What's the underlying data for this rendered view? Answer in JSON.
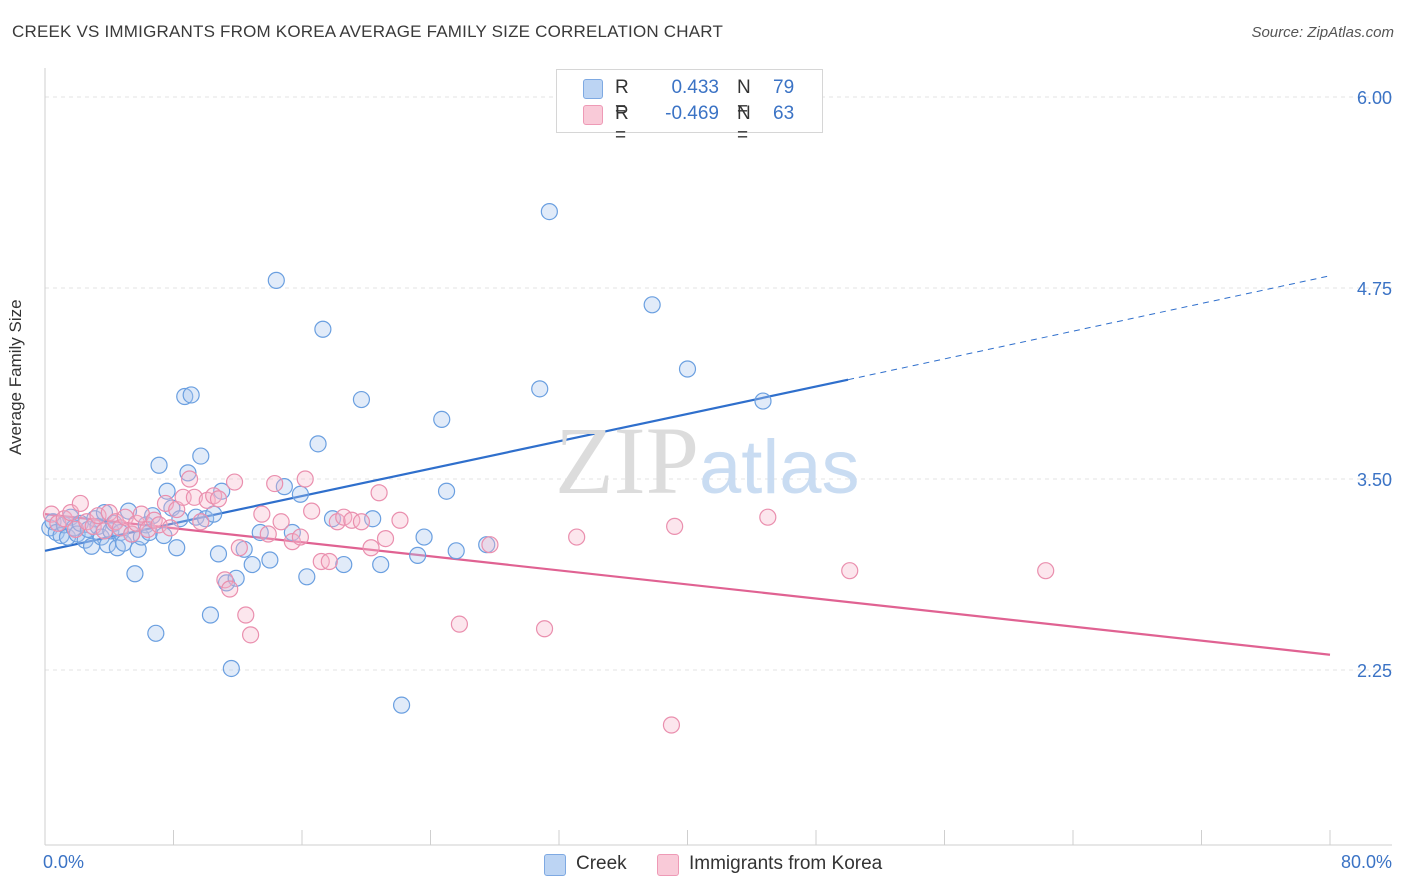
{
  "title": "CREEK VS IMMIGRANTS FROM KOREA AVERAGE FAMILY SIZE CORRELATION CHART",
  "source": "Source: ZipAtlas.com",
  "watermark": {
    "zip": "ZIP",
    "atlas": "atlas"
  },
  "legend": {
    "rows": [
      {
        "r_label": "R =",
        "r_value": "0.433",
        "n_label": "N =",
        "n_value": "79",
        "color": "#a9c6ef"
      },
      {
        "r_label": "R =",
        "r_value": "-0.469",
        "n_label": "N =",
        "n_value": "63",
        "color": "#f5b8cb"
      }
    ]
  },
  "bottom_legend": [
    {
      "label": "Creek",
      "color": "#a9c6ef"
    },
    {
      "label": "Immigrants from Korea",
      "color": "#f5b8cb"
    }
  ],
  "chart_data": {
    "type": "scatter",
    "ylabel": "Average Family Size",
    "xlim": [
      0,
      80
    ],
    "ylim": [
      1.25,
      6.1
    ],
    "x_tick_labels": {
      "left": "0.0%",
      "right": "80.0%"
    },
    "y_ticks": [
      {
        "value": 6.0,
        "label": "6.00"
      },
      {
        "value": 4.75,
        "label": "4.75"
      },
      {
        "value": 3.5,
        "label": "3.50"
      },
      {
        "value": 2.25,
        "label": "2.25"
      }
    ],
    "grid": "horizontal dashed",
    "series": [
      {
        "name": "Creek",
        "color": "#6a9fe0",
        "fill": "rgba(169,198,239,0.35)",
        "line_color": "#2f6fcc",
        "trend": {
          "x0": 0,
          "y0": 3.03,
          "x1": 50,
          "y1": 4.15,
          "x_ext": 80,
          "y_ext": 4.83
        },
        "points": [
          [
            0.3,
            3.18
          ],
          [
            0.5,
            3.22
          ],
          [
            0.7,
            3.15
          ],
          [
            1.0,
            3.13
          ],
          [
            1.2,
            3.2
          ],
          [
            1.4,
            3.12
          ],
          [
            1.6,
            3.25
          ],
          [
            1.8,
            3.18
          ],
          [
            2.0,
            3.14
          ],
          [
            2.2,
            3.21
          ],
          [
            2.5,
            3.1
          ],
          [
            2.7,
            3.17
          ],
          [
            2.9,
            3.06
          ],
          [
            3.1,
            3.24
          ],
          [
            3.3,
            3.19
          ],
          [
            3.5,
            3.12
          ],
          [
            3.7,
            3.28
          ],
          [
            3.9,
            3.07
          ],
          [
            4.1,
            3.16
          ],
          [
            4.3,
            3.21
          ],
          [
            4.5,
            3.05
          ],
          [
            4.7,
            3.15
          ],
          [
            4.9,
            3.08
          ],
          [
            5.2,
            3.29
          ],
          [
            5.4,
            3.14
          ],
          [
            5.6,
            2.88
          ],
          [
            5.8,
            3.04
          ],
          [
            6.0,
            3.12
          ],
          [
            6.3,
            3.2
          ],
          [
            6.5,
            3.15
          ],
          [
            6.7,
            3.26
          ],
          [
            6.9,
            2.49
          ],
          [
            7.1,
            3.59
          ],
          [
            7.4,
            3.13
          ],
          [
            7.6,
            3.42
          ],
          [
            7.9,
            3.31
          ],
          [
            8.2,
            3.05
          ],
          [
            8.4,
            3.24
          ],
          [
            8.7,
            4.04
          ],
          [
            8.9,
            3.54
          ],
          [
            9.1,
            4.05
          ],
          [
            9.4,
            3.25
          ],
          [
            9.7,
            3.65
          ],
          [
            10.0,
            3.24
          ],
          [
            10.3,
            2.61
          ],
          [
            10.5,
            3.27
          ],
          [
            10.8,
            3.01
          ],
          [
            11.0,
            3.42
          ],
          [
            11.3,
            2.82
          ],
          [
            11.6,
            2.26
          ],
          [
            11.9,
            2.85
          ],
          [
            12.4,
            3.04
          ],
          [
            12.9,
            2.94
          ],
          [
            13.4,
            3.15
          ],
          [
            14.0,
            2.97
          ],
          [
            14.4,
            4.8
          ],
          [
            14.9,
            3.45
          ],
          [
            15.4,
            3.15
          ],
          [
            15.9,
            3.4
          ],
          [
            16.3,
            2.86
          ],
          [
            17.0,
            3.73
          ],
          [
            17.3,
            4.48
          ],
          [
            17.9,
            3.24
          ],
          [
            18.6,
            2.94
          ],
          [
            19.7,
            4.02
          ],
          [
            20.4,
            3.24
          ],
          [
            20.9,
            2.94
          ],
          [
            22.2,
            2.02
          ],
          [
            23.2,
            3.0
          ],
          [
            23.6,
            3.12
          ],
          [
            24.7,
            3.89
          ],
          [
            25.0,
            3.42
          ],
          [
            25.6,
            3.03
          ],
          [
            27.5,
            3.07
          ],
          [
            30.8,
            4.09
          ],
          [
            31.4,
            5.25
          ],
          [
            37.8,
            4.64
          ],
          [
            40.0,
            4.22
          ],
          [
            44.7,
            4.01
          ]
        ]
      },
      {
        "name": "Immigrants from Korea",
        "color": "#ea8fae",
        "fill": "rgba(245,184,203,0.35)",
        "line_color": "#e06292",
        "trend": {
          "x0": 0,
          "y0": 3.27,
          "x1": 80,
          "y1": 2.35
        },
        "points": [
          [
            0.4,
            3.27
          ],
          [
            0.8,
            3.21
          ],
          [
            1.2,
            3.24
          ],
          [
            1.6,
            3.28
          ],
          [
            1.9,
            3.17
          ],
          [
            2.2,
            3.34
          ],
          [
            2.6,
            3.22
          ],
          [
            3.0,
            3.19
          ],
          [
            3.3,
            3.26
          ],
          [
            3.7,
            3.16
          ],
          [
            4.0,
            3.28
          ],
          [
            4.4,
            3.22
          ],
          [
            4.7,
            3.18
          ],
          [
            5.0,
            3.25
          ],
          [
            5.4,
            3.14
          ],
          [
            5.7,
            3.21
          ],
          [
            6.0,
            3.27
          ],
          [
            6.4,
            3.17
          ],
          [
            6.8,
            3.23
          ],
          [
            7.1,
            3.2
          ],
          [
            7.5,
            3.34
          ],
          [
            7.8,
            3.18
          ],
          [
            8.2,
            3.3
          ],
          [
            8.6,
            3.38
          ],
          [
            9.0,
            3.5
          ],
          [
            9.3,
            3.38
          ],
          [
            9.7,
            3.22
          ],
          [
            10.1,
            3.36
          ],
          [
            10.5,
            3.39
          ],
          [
            10.8,
            3.37
          ],
          [
            11.2,
            2.84
          ],
          [
            11.5,
            2.78
          ],
          [
            11.8,
            3.48
          ],
          [
            12.1,
            3.05
          ],
          [
            12.5,
            2.61
          ],
          [
            12.8,
            2.48
          ],
          [
            13.5,
            3.27
          ],
          [
            13.9,
            3.14
          ],
          [
            14.3,
            3.47
          ],
          [
            14.7,
            3.22
          ],
          [
            15.4,
            3.09
          ],
          [
            15.9,
            3.12
          ],
          [
            16.2,
            3.5
          ],
          [
            16.6,
            3.29
          ],
          [
            17.2,
            2.96
          ],
          [
            17.7,
            2.96
          ],
          [
            18.2,
            3.22
          ],
          [
            18.6,
            3.25
          ],
          [
            19.1,
            3.23
          ],
          [
            19.7,
            3.22
          ],
          [
            20.3,
            3.05
          ],
          [
            20.8,
            3.41
          ],
          [
            21.2,
            3.11
          ],
          [
            22.1,
            3.23
          ],
          [
            25.8,
            2.55
          ],
          [
            27.7,
            3.07
          ],
          [
            31.1,
            2.52
          ],
          [
            33.1,
            3.12
          ],
          [
            39.0,
            1.89
          ],
          [
            39.2,
            3.19
          ],
          [
            45.0,
            3.25
          ],
          [
            50.1,
            2.9
          ],
          [
            62.3,
            2.9
          ]
        ]
      }
    ]
  }
}
